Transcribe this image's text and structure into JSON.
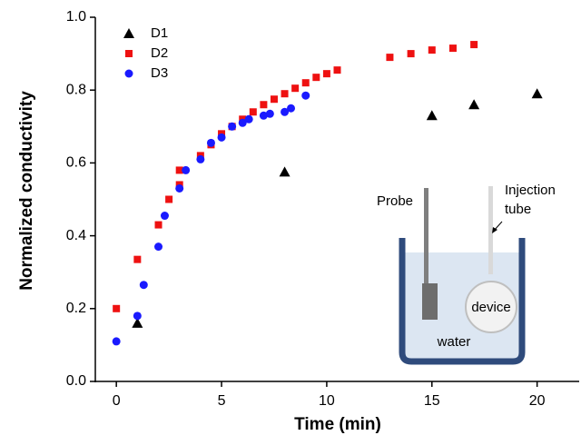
{
  "chart_data": {
    "type": "scatter",
    "x_label": "Time (min)",
    "y_label": "Normalized conductivity",
    "xlim": [
      -1,
      22
    ],
    "xticks": [
      0,
      5,
      10,
      15,
      20
    ],
    "ylim": [
      0,
      1.0
    ],
    "yticks": [
      {
        "value": 0,
        "label": "0.0"
      },
      {
        "value": 0.2,
        "label": "0.2"
      },
      {
        "value": 0.4,
        "label": "0.4"
      },
      {
        "value": 0.6,
        "label": "0.6"
      },
      {
        "value": 0.8,
        "label": "0.8"
      },
      {
        "value": 1.0,
        "label": "1.0"
      }
    ],
    "legend": "upper left",
    "series": [
      {
        "name": "D1",
        "color": "#000000",
        "marker": "triangle",
        "x": [
          1,
          8,
          15,
          17,
          20
        ],
        "values": [
          0.16,
          0.575,
          0.73,
          0.76,
          0.79
        ]
      },
      {
        "name": "D2",
        "color": "#ee1111",
        "marker": "square",
        "x": [
          0,
          1,
          2,
          2.5,
          3,
          3,
          4,
          4.5,
          5,
          5.5,
          6,
          6.5,
          7,
          7.5,
          8,
          8.5,
          9,
          9.5,
          10,
          10.5,
          13,
          14,
          15,
          16,
          17
        ],
        "values": [
          0.2,
          0.335,
          0.43,
          0.5,
          0.54,
          0.58,
          0.62,
          0.65,
          0.68,
          0.7,
          0.72,
          0.74,
          0.76,
          0.775,
          0.79,
          0.805,
          0.82,
          0.835,
          0.845,
          0.855,
          0.89,
          0.9,
          0.91,
          0.915,
          0.925
        ]
      },
      {
        "name": "D3",
        "color": "#1a1aff",
        "marker": "circle",
        "x": [
          0,
          1,
          1.3,
          2,
          2.3,
          3,
          3.3,
          4,
          4.5,
          5,
          5.5,
          6,
          6.3,
          7,
          7.3,
          8,
          8.3,
          9
        ],
        "values": [
          0.11,
          0.18,
          0.265,
          0.37,
          0.455,
          0.53,
          0.58,
          0.61,
          0.655,
          0.67,
          0.7,
          0.71,
          0.72,
          0.73,
          0.735,
          0.74,
          0.75,
          0.785
        ]
      }
    ],
    "annotations": [
      "Probe",
      "Injection",
      "tube",
      "device",
      "water"
    ]
  }
}
